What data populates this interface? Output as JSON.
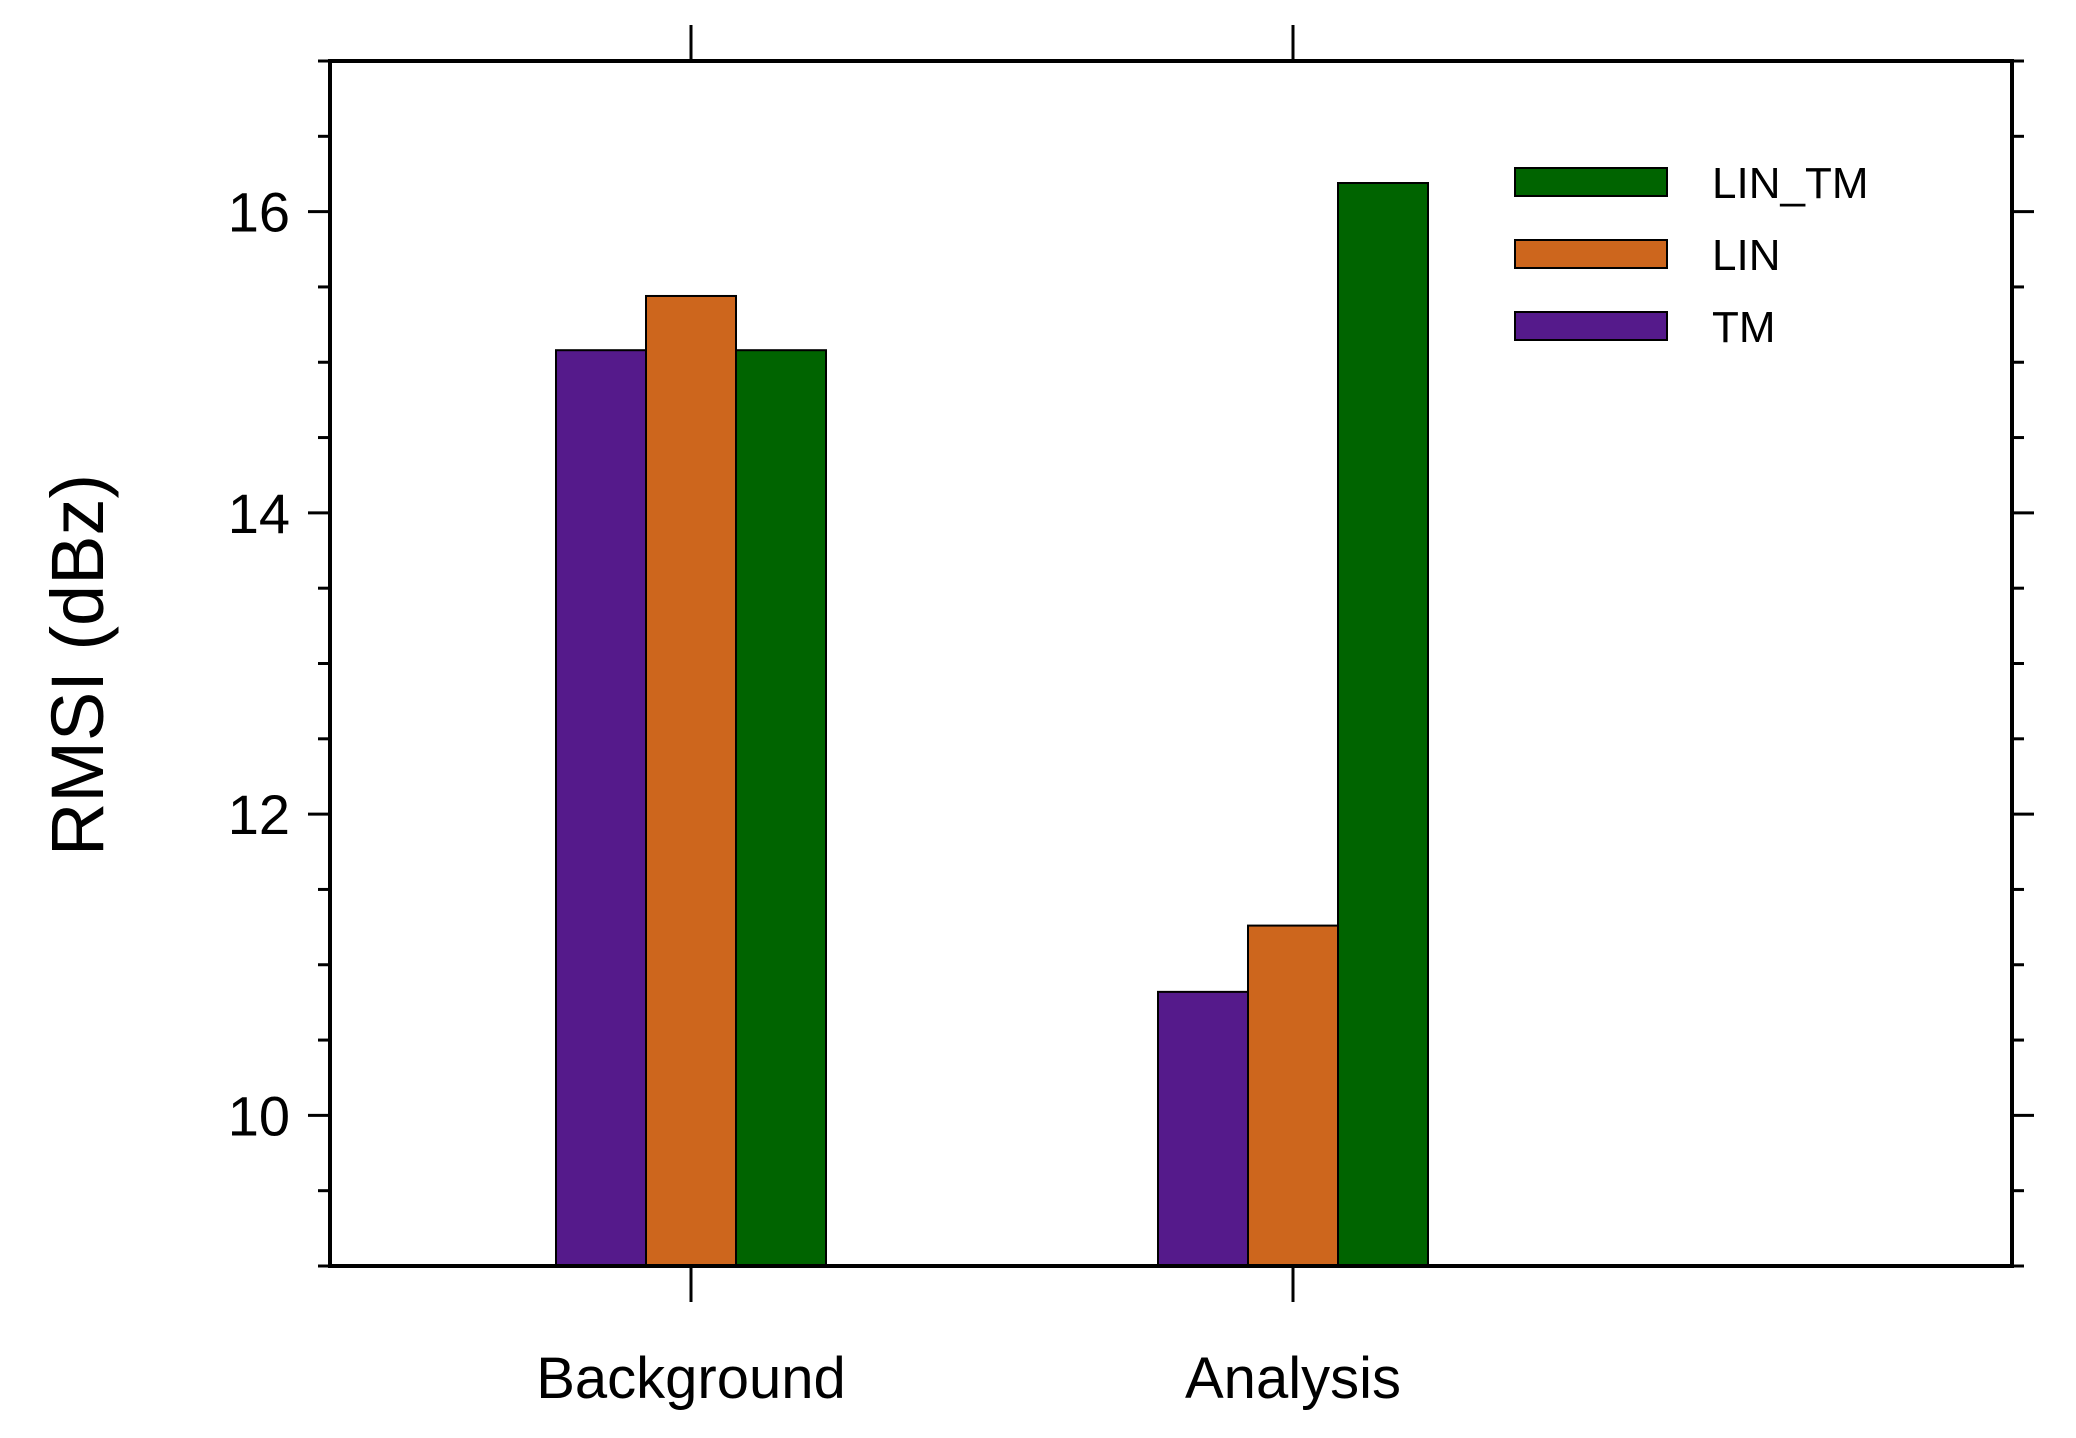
{
  "chart_data": {
    "type": "bar",
    "categories": [
      "Background",
      "Analysis"
    ],
    "series": [
      {
        "name": "TM",
        "values": [
          15.08,
          10.82
        ],
        "color": "#551a8b"
      },
      {
        "name": "LIN",
        "values": [
          15.44,
          11.26
        ],
        "color": "#cd661d"
      },
      {
        "name": "LIN_TM",
        "values": [
          15.08,
          16.19
        ],
        "color": "#006400"
      }
    ],
    "legend_order": [
      "LIN_TM",
      "LIN",
      "TM"
    ],
    "legend_placement": "top-right",
    "title": "",
    "xlabel": "",
    "ylabel": "RMSI (dBz)",
    "ylim": [
      9,
      17
    ],
    "yticks": [
      10,
      12,
      14,
      16
    ],
    "grid": false
  }
}
